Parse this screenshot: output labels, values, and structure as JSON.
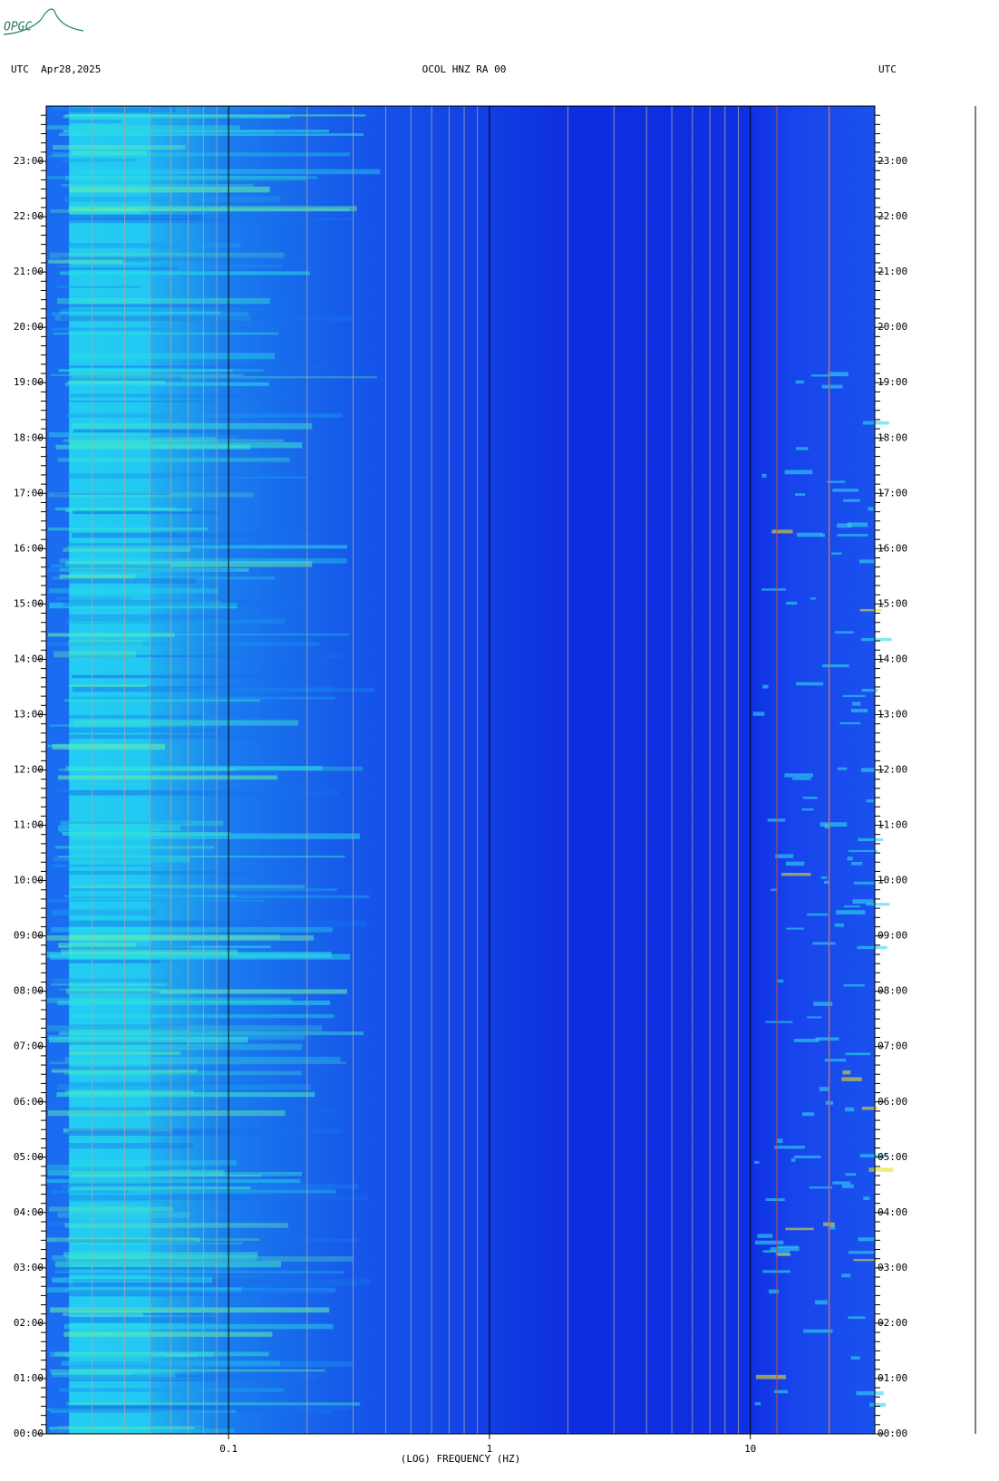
{
  "logo": "OPGC",
  "chart_data": {
    "type": "spectrogram",
    "title": "OCOL HNZ RA 00",
    "left_header": "UTC  Apr28,2025",
    "right_header": "UTC",
    "xlabel": "(LOG) FREQUENCY (HZ)",
    "xscale": "log",
    "xlim": [
      0.02,
      30
    ],
    "xticks": [
      {
        "value": 0.1,
        "label": "0.1"
      },
      1,
      10
    ],
    "ylim": [
      0,
      24
    ],
    "yticks": [
      {
        "value": 0,
        "label": "00:00"
      },
      {
        "value": 1,
        "label": "01:00"
      },
      {
        "value": 2,
        "label": "02:00"
      },
      {
        "value": 3,
        "label": "03:00"
      },
      {
        "value": 4,
        "label": "04:00"
      },
      {
        "value": 5,
        "label": "05:00"
      },
      {
        "value": 6,
        "label": "06:00"
      },
      {
        "value": 7,
        "label": "07:00"
      },
      {
        "value": 8,
        "label": "08:00"
      },
      {
        "value": 9,
        "label": "09:00"
      },
      {
        "value": 10,
        "label": "10:00"
      },
      {
        "value": 11,
        "label": "11:00"
      },
      {
        "value": 12,
        "label": "12:00"
      },
      {
        "value": 13,
        "label": "13:00"
      },
      {
        "value": 14,
        "label": "14:00"
      },
      {
        "value": 15,
        "label": "15:00"
      },
      {
        "value": 16,
        "label": "16:00"
      },
      {
        "value": 17,
        "label": "17:00"
      },
      {
        "value": 18,
        "label": "18:00"
      },
      {
        "value": 19,
        "label": "19:00"
      },
      {
        "value": 20,
        "label": "20:00"
      },
      {
        "value": 21,
        "label": "21:00"
      },
      {
        "value": 22,
        "label": "22:00"
      },
      {
        "value": 23,
        "label": "23:00"
      }
    ],
    "grid": true
  }
}
